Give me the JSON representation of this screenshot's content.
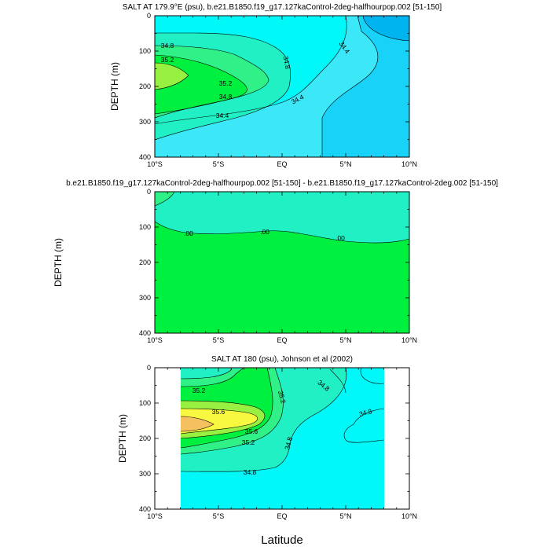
{
  "colors": {
    "c_deep": "#00b4f0",
    "c_blue": "#18d2f8",
    "c_cyan": "#3ce8f8",
    "c_aqua": "#00f8f8",
    "c_teal": "#20f0c4",
    "c_mint": "#30f088",
    "c_green": "#00f040",
    "c_lime": "#98f040",
    "c_yellow": "#f8f840",
    "c_orange": "#f4c060"
  },
  "chart_data": [
    {
      "type": "contour",
      "title": "SALT AT 179.9°E (psu), b.e21.B1850.f19_g17.127kaControl-2deg-halfhourpop.002 [51-150]",
      "ylabel": "DEPTH (m)",
      "xticks": [
        "10°S",
        "5°S",
        "EQ",
        "5°N",
        "10°N"
      ],
      "yticks": [
        "0",
        "100",
        "200",
        "300",
        "400"
      ],
      "xlim": [
        -10,
        10
      ],
      "ylim": [
        400,
        0
      ],
      "contour_labels": [
        "34.8",
        "35.2",
        "35.2",
        "34.8",
        "34.8",
        "34.4",
        "34.4",
        "34.4"
      ]
    },
    {
      "type": "contour",
      "title": "b.e21.B1850.f19_g17.127kaControl-2deg-halfhourpop.002 [51-150] - b.e21.B1850.f19_g17.127kaControl-2deg.002 [51-150]",
      "ylabel": "DEPTH (m)",
      "xticks": [
        "10°S",
        "5°S",
        "EQ",
        "5°N",
        "10°N"
      ],
      "yticks": [
        "0",
        "100",
        "200",
        "300",
        "400"
      ],
      "xlim": [
        -10,
        10
      ],
      "ylim": [
        400,
        0
      ],
      "contour_labels": [
        ".00",
        ".00",
        ".00"
      ]
    },
    {
      "type": "contour",
      "title": "SALT AT 180 (psu), Johnson et al (2002)",
      "ylabel": "DEPTH (m)",
      "xlabel": "Latitude",
      "xticks": [
        "10°S",
        "5°S",
        "EQ",
        "5°N",
        "10°N"
      ],
      "yticks": [
        "0",
        "100",
        "200",
        "300",
        "400"
      ],
      "xlim": [
        -10,
        10
      ],
      "ylim": [
        400,
        0
      ],
      "data_extent_lat": [
        -8,
        8
      ],
      "contour_labels": [
        "35.2",
        "35.6",
        "35.6",
        "35.2",
        "35.2",
        "34.8",
        "34.8",
        "34.8",
        "34.8"
      ]
    }
  ]
}
